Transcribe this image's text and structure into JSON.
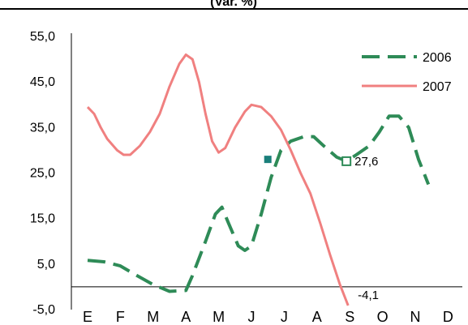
{
  "chart_data": {
    "type": "line",
    "title": "(Var. %)",
    "xlabel": "",
    "ylabel": "",
    "categories": [
      "E",
      "F",
      "M",
      "A",
      "M",
      "J",
      "J",
      "A",
      "S",
      "O",
      "N",
      "D"
    ],
    "y_ticks": [
      "55,0",
      "45,0",
      "35,0",
      "25,0",
      "15,0",
      "5,0",
      "-5,0"
    ],
    "y_tick_values": [
      55,
      45,
      35,
      25,
      15,
      5,
      -5
    ],
    "ylim": [
      -5,
      55
    ],
    "grid": false,
    "legend_position": "top-right",
    "series": [
      {
        "name": "2006",
        "color": "#2e8b57",
        "dash": "long-dash",
        "points": [
          [
            0.0,
            5.8
          ],
          [
            0.5,
            5.5
          ],
          [
            1.0,
            4.6
          ],
          [
            1.5,
            2.5
          ],
          [
            2.0,
            0.5
          ],
          [
            2.5,
            -1.0
          ],
          [
            3.0,
            -0.8
          ],
          [
            3.2,
            2.5
          ],
          [
            3.6,
            10.0
          ],
          [
            3.9,
            16.0
          ],
          [
            4.1,
            17.5
          ],
          [
            4.3,
            14.0
          ],
          [
            4.6,
            9.0
          ],
          [
            4.8,
            8.0
          ],
          [
            5.0,
            9.0
          ],
          [
            5.3,
            16.0
          ],
          [
            5.6,
            24.0
          ],
          [
            5.9,
            30.0
          ],
          [
            6.2,
            32.0
          ],
          [
            6.6,
            33.0
          ],
          [
            6.9,
            33.0
          ],
          [
            7.2,
            31.0
          ],
          [
            7.6,
            28.5
          ],
          [
            7.9,
            27.6
          ],
          [
            8.2,
            29.0
          ],
          [
            8.6,
            31.0
          ],
          [
            8.9,
            34.0
          ],
          [
            9.2,
            37.5
          ],
          [
            9.5,
            37.5
          ],
          [
            9.8,
            35.0
          ],
          [
            10.1,
            28.0
          ],
          [
            10.4,
            22.5
          ]
        ]
      },
      {
        "name": "2007",
        "color": "#f08080",
        "dash": "solid",
        "points": [
          [
            0.0,
            39.5
          ],
          [
            0.2,
            38.0
          ],
          [
            0.4,
            35.0
          ],
          [
            0.6,
            32.5
          ],
          [
            0.9,
            30.0
          ],
          [
            1.1,
            29.0
          ],
          [
            1.3,
            29.0
          ],
          [
            1.6,
            31.0
          ],
          [
            1.9,
            34.0
          ],
          [
            2.2,
            38.0
          ],
          [
            2.5,
            44.0
          ],
          [
            2.8,
            49.0
          ],
          [
            3.0,
            51.0
          ],
          [
            3.2,
            50.0
          ],
          [
            3.4,
            45.0
          ],
          [
            3.6,
            38.0
          ],
          [
            3.8,
            32.0
          ],
          [
            4.0,
            29.5
          ],
          [
            4.2,
            30.5
          ],
          [
            4.5,
            35.0
          ],
          [
            4.8,
            38.5
          ],
          [
            5.0,
            40.0
          ],
          [
            5.3,
            39.5
          ],
          [
            5.6,
            37.5
          ],
          [
            5.9,
            34.5
          ],
          [
            6.2,
            30.0
          ],
          [
            6.5,
            25.0
          ],
          [
            6.8,
            20.5
          ],
          [
            7.1,
            14.0
          ],
          [
            7.4,
            7.0
          ],
          [
            7.7,
            0.5
          ],
          [
            7.95,
            -4.1
          ]
        ]
      }
    ],
    "annotations": [
      {
        "series": "2006",
        "x": 7.9,
        "y": 27.6,
        "label": "27,6",
        "marker": "hollow-square"
      },
      {
        "series": "2006",
        "x": 5.5,
        "y": 28.0,
        "label": "",
        "marker": "filled-square"
      },
      {
        "series": "2007",
        "x": 7.95,
        "y": -4.1,
        "label": "-4,1",
        "marker": "none"
      }
    ]
  }
}
